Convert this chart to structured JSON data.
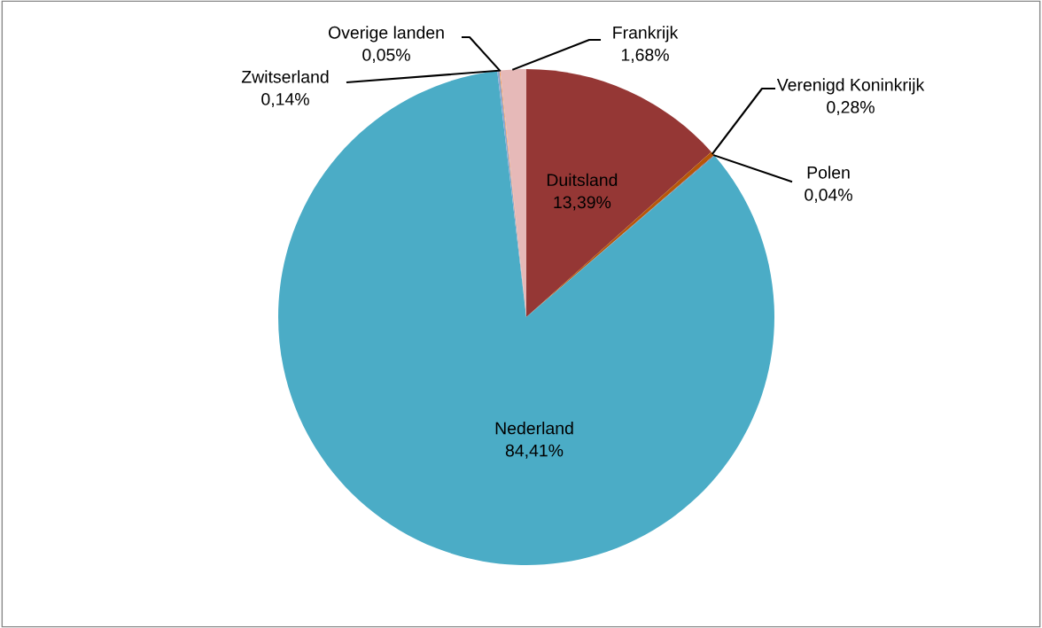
{
  "chart_data": {
    "type": "pie",
    "categories": [
      "Duitsland",
      "Verenigd Koninkrijk",
      "Polen",
      "Nederland",
      "Zwitserland",
      "Overige landen",
      "Frankrijk"
    ],
    "values": [
      13.39,
      0.28,
      0.04,
      84.41,
      0.14,
      0.05,
      1.68
    ],
    "colors": [
      "#953735",
      "#b65708",
      "#7f6084",
      "#4bacc6",
      "#8ca6cf",
      "#f79646",
      "#e6b9b8"
    ],
    "value_labels": [
      "13,39%",
      "0,28%",
      "0,04%",
      "84,41%",
      "0,14%",
      "0,05%",
      "1,68%"
    ]
  }
}
